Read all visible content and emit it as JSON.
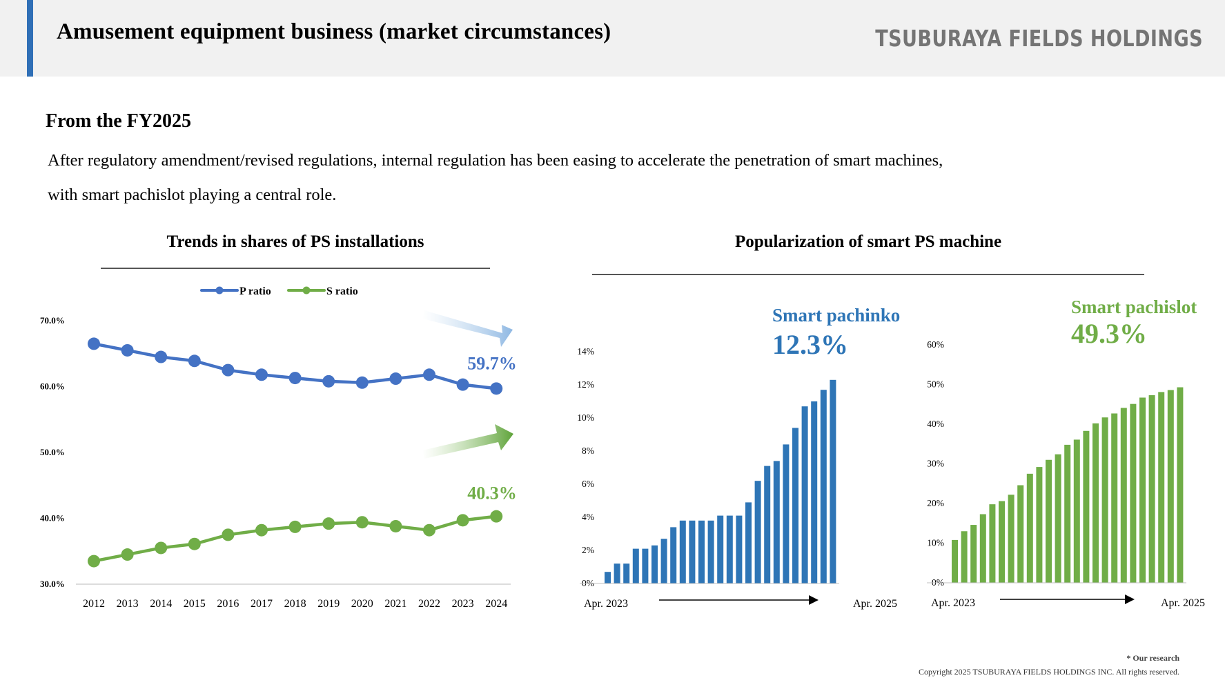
{
  "header": {
    "title": "Amusement equipment business (market circumstances)",
    "brand": "TSUBURAYA FIELDS HOLDINGS"
  },
  "content": {
    "subtitle": "From the FY2025",
    "body_line1": "After regulatory amendment/revised regulations, internal regulation has been easing to accelerate the penetration of smart machines,",
    "body_line2": "with smart pachislot playing a central role."
  },
  "section_titles": {
    "left": "Trends in shares of PS installations",
    "right": "Popularization of smart PS machine"
  },
  "footer": {
    "note": "* Our research",
    "copyright": "Copyright 2025 TSUBURAYA FIELDS HOLDINGS INC. All rights reserved."
  },
  "colors": {
    "blue": "#4472c4",
    "green": "#70ad47",
    "bar_blue": "#2e75b6",
    "bar_green": "#70ad47",
    "accent_bar": "#2f6fb6"
  },
  "chart_data": [
    {
      "type": "line",
      "title": "Trends in shares of PS installations",
      "x": [
        "2012",
        "2013",
        "2014",
        "2015",
        "2016",
        "2017",
        "2018",
        "2019",
        "2020",
        "2021",
        "2022",
        "2023",
        "2024"
      ],
      "series": [
        {
          "name": "P ratio",
          "color": "#4472c4",
          "values": [
            66.5,
            65.5,
            64.5,
            63.9,
            62.5,
            61.8,
            61.3,
            60.8,
            60.6,
            61.2,
            61.8,
            60.3,
            59.7
          ]
        },
        {
          "name": "S ratio",
          "color": "#70ad47",
          "values": [
            33.5,
            34.5,
            35.5,
            36.1,
            37.5,
            38.2,
            38.7,
            39.2,
            39.4,
            38.8,
            38.2,
            39.7,
            40.3
          ]
        }
      ],
      "yticks": [
        "70.0%",
        "60.0%",
        "50.0%",
        "40.0%",
        "30.0%"
      ],
      "ylim": [
        30,
        70
      ],
      "legend": "top-center",
      "annotations": [
        {
          "text": "59.7%",
          "series": "P ratio"
        },
        {
          "text": "40.3%",
          "series": "S ratio"
        }
      ]
    },
    {
      "type": "bar",
      "title": "Smart pachinko",
      "highlight": "12.3%",
      "color": "#2e75b6",
      "x_start": "Apr. 2023",
      "x_end": "Apr. 2025",
      "values": [
        0.7,
        1.2,
        1.2,
        2.1,
        2.1,
        2.3,
        2.7,
        3.4,
        3.8,
        3.8,
        3.8,
        3.8,
        4.1,
        4.1,
        4.1,
        4.9,
        6.2,
        7.1,
        7.4,
        8.4,
        9.4,
        10.7,
        11.0,
        11.7,
        12.3
      ],
      "yticks": [
        "14%",
        "12%",
        "10%",
        "8%",
        "6%",
        "4%",
        "2%",
        "0%"
      ],
      "ylim": [
        0,
        14
      ]
    },
    {
      "type": "bar",
      "title": "Smart pachislot",
      "highlight": "49.3%",
      "color": "#70ad47",
      "x_start": "Apr. 2023",
      "x_end": "Apr. 2025",
      "values": [
        10.8,
        13.0,
        14.6,
        17.3,
        19.8,
        20.6,
        22.2,
        24.6,
        27.5,
        29.2,
        31.0,
        32.4,
        34.8,
        36.1,
        38.3,
        40.2,
        41.7,
        42.7,
        44.1,
        45.1,
        46.7,
        47.3,
        48.1,
        48.6,
        49.3
      ],
      "yticks": [
        "60%",
        "50%",
        "40%",
        "30%",
        "20%",
        "10%",
        "0%"
      ],
      "ylim": [
        0,
        60
      ]
    }
  ]
}
